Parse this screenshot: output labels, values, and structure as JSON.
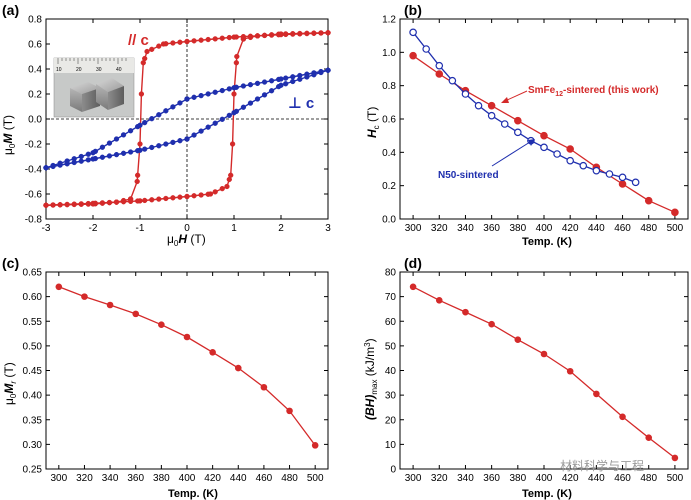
{
  "panels": [
    {
      "tag": "(a)",
      "xlabel_pre": "μ",
      "xlabel_sub": "0",
      "xlabel_var": "H",
      "xlabel_unit": " (T)",
      "ylabel_pre": "μ",
      "ylabel_sub": "0",
      "ylabel_var": "M",
      "ylabel_unit": " (T)",
      "xticks": [
        "-3",
        "-2",
        "-1",
        "0",
        "1",
        "2",
        "3"
      ],
      "yticks": [
        "0.8",
        "0.6",
        "0.4",
        "0.2",
        "0.0",
        "-0.2",
        "-0.4",
        "-0.6",
        "-0.8"
      ],
      "annot_par": "// c",
      "annot_perp": "⊥ c",
      "inset_labels": [
        "10",
        "20",
        "30",
        "40"
      ]
    },
    {
      "tag": "(b)",
      "xlabel": "Temp. (K)",
      "ylabel_var": "H",
      "ylabel_sub": "c",
      "ylabel_unit": " (T)",
      "xticks": [
        "300",
        "320",
        "340",
        "360",
        "380",
        "400",
        "420",
        "440",
        "460",
        "480",
        "500"
      ],
      "yticks": [
        "1.2",
        "1.0",
        "0.8",
        "0.6",
        "0.4",
        "0.2",
        "0.0"
      ],
      "annot_smfe_pre": "SmFe",
      "annot_smfe_sub": "12",
      "annot_smfe_post": "-sintered (this work)",
      "annot_n50": "N50-sintered"
    },
    {
      "tag": "(c)",
      "xlabel": "Temp. (K)",
      "ylabel_pre": "μ",
      "ylabel_sub": "0",
      "ylabel_var": "M",
      "ylabel_sub2": "r",
      "ylabel_unit": " (T)",
      "xticks": [
        "300",
        "320",
        "340",
        "360",
        "380",
        "400",
        "420",
        "440",
        "460",
        "480",
        "500"
      ],
      "yticks": [
        "0.65",
        "0.60",
        "0.55",
        "0.50",
        "0.45",
        "0.40",
        "0.35",
        "0.30",
        "0.25"
      ]
    },
    {
      "tag": "(d)",
      "xlabel": "Temp. (K)",
      "ylabel_var": "(BH)",
      "ylabel_sub": "max",
      "ylabel_unit": " (kJ/m",
      "ylabel_sup": "3",
      "ylabel_close": ")",
      "xticks": [
        "300",
        "320",
        "340",
        "360",
        "380",
        "400",
        "420",
        "440",
        "460",
        "480",
        "500"
      ],
      "yticks": [
        "80",
        "70",
        "60",
        "50",
        "40",
        "30",
        "20",
        "10",
        "0"
      ]
    }
  ],
  "watermark": "材料科学与工程",
  "colors": {
    "red": "#d42a2a",
    "blue": "#1f2fae",
    "axis": "#000000"
  },
  "chart_data": [
    {
      "type": "line",
      "title": "(a)",
      "xlabel": "μ0H (T)",
      "ylabel": "μ0M (T)",
      "xlim": [
        -3,
        3
      ],
      "ylim": [
        -0.8,
        0.8
      ],
      "series": [
        {
          "name": "// c",
          "color": "#d42a2a",
          "branches": [
            {
              "x": [
                -3.0,
                -2.0,
                -1.5,
                -1.2,
                -1.06,
                -1.0,
                -0.97,
                -0.93,
                -0.85,
                -0.5,
                0.0,
                1.0,
                2.0,
                3.0
              ],
              "y": [
                -0.69,
                -0.68,
                -0.665,
                -0.64,
                -0.5,
                -0.2,
                0.2,
                0.45,
                0.54,
                0.6,
                0.62,
                0.655,
                0.675,
                0.69
              ]
            },
            {
              "x": [
                3.0,
                2.0,
                1.5,
                1.2,
                1.06,
                1.0,
                0.97,
                0.93,
                0.85,
                0.5,
                0.0,
                -1.0,
                -2.0,
                -3.0
              ],
              "y": [
                0.69,
                0.68,
                0.665,
                0.64,
                0.5,
                0.2,
                -0.2,
                -0.45,
                -0.54,
                -0.6,
                -0.62,
                -0.655,
                -0.675,
                -0.69
              ]
            }
          ]
        },
        {
          "name": "⊥ c",
          "color": "#1f2fae",
          "branches": [
            {
              "x": [
                -3.0,
                -2.0,
                -1.0,
                0.0,
                1.0,
                2.0,
                3.0
              ],
              "y": [
                -0.39,
                -0.27,
                -0.05,
                0.16,
                0.25,
                0.32,
                0.39
              ]
            },
            {
              "x": [
                3.0,
                2.0,
                1.0,
                0.0,
                -1.0,
                -2.0,
                -3.0
              ],
              "y": [
                0.39,
                0.27,
                0.05,
                -0.16,
                -0.25,
                -0.32,
                -0.39
              ]
            }
          ]
        }
      ]
    },
    {
      "type": "line",
      "title": "(b)",
      "xlabel": "Temp. (K)",
      "ylabel": "Hc (T)",
      "xlim": [
        290,
        510
      ],
      "ylim": [
        0.0,
        1.2
      ],
      "series": [
        {
          "name": "SmFe12-sintered (this work)",
          "color": "#d42a2a",
          "marker": "filled",
          "x": [
            300,
            320,
            340,
            360,
            380,
            400,
            420,
            440,
            460,
            480,
            500
          ],
          "y": [
            0.98,
            0.87,
            0.77,
            0.68,
            0.59,
            0.5,
            0.42,
            0.31,
            0.21,
            0.11,
            0.04
          ]
        },
        {
          "name": "N50-sintered",
          "color": "#1f2fae",
          "marker": "open",
          "x": [
            300,
            310,
            320,
            330,
            340,
            350,
            360,
            370,
            380,
            390,
            400,
            410,
            420,
            430,
            440,
            450,
            460,
            470
          ],
          "y": [
            1.12,
            1.02,
            0.92,
            0.83,
            0.75,
            0.68,
            0.62,
            0.57,
            0.52,
            0.47,
            0.43,
            0.39,
            0.35,
            0.32,
            0.29,
            0.27,
            0.25,
            0.22
          ]
        }
      ]
    },
    {
      "type": "line",
      "title": "(c)",
      "xlabel": "Temp. (K)",
      "ylabel": "μ0Mr (T)",
      "xlim": [
        290,
        510
      ],
      "ylim": [
        0.25,
        0.65
      ],
      "series": [
        {
          "name": "μ0Mr",
          "color": "#d42a2a",
          "x": [
            300,
            320,
            340,
            360,
            380,
            400,
            420,
            440,
            460,
            480,
            500
          ],
          "y": [
            0.62,
            0.6,
            0.583,
            0.565,
            0.543,
            0.518,
            0.487,
            0.455,
            0.416,
            0.368,
            0.298
          ]
        }
      ]
    },
    {
      "type": "line",
      "title": "(d)",
      "xlabel": "Temp. (K)",
      "ylabel": "(BH)max (kJ/m3)",
      "xlim": [
        290,
        510
      ],
      "ylim": [
        0,
        80
      ],
      "series": [
        {
          "name": "(BH)max",
          "color": "#d42a2a",
          "x": [
            300,
            320,
            340,
            360,
            380,
            400,
            420,
            440,
            460,
            480,
            500
          ],
          "y": [
            74.0,
            68.5,
            63.7,
            58.8,
            52.5,
            46.7,
            39.7,
            30.5,
            21.2,
            12.7,
            4.5
          ]
        }
      ]
    }
  ]
}
